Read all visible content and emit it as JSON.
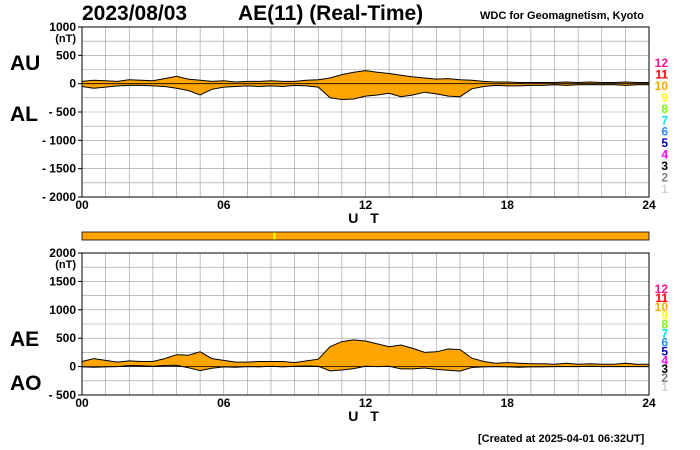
{
  "header": {
    "date": "2023/08/03",
    "title": "AE(11) (Real-Time)",
    "source": "WDC for Geomagnetism, Kyoto",
    "created": "[Created at 2025-04-01 06:32UT]"
  },
  "legend": {
    "items": [
      {
        "label": "12",
        "color": "#ff1493"
      },
      {
        "label": "11",
        "color": "#ff0000"
      },
      {
        "label": "10",
        "color": "#ffa500"
      },
      {
        "label": "9",
        "color": "#ffff00"
      },
      {
        "label": "8",
        "color": "#7cfc00"
      },
      {
        "label": "7",
        "color": "#00e5ee"
      },
      {
        "label": "6",
        "color": "#1e90ff"
      },
      {
        "label": "5",
        "color": "#0000cd"
      },
      {
        "label": "4",
        "color": "#ff00ff"
      },
      {
        "label": "3",
        "color": "#000000"
      },
      {
        "label": "2",
        "color": "#808080"
      },
      {
        "label": "1",
        "color": "#d3d3d3"
      }
    ]
  },
  "station_bar": {
    "color": "#ffa500",
    "marker_color": "#ffff00",
    "marker_at_hour": 8.1
  },
  "chart_data": [
    {
      "type": "area",
      "name": "AU/AL",
      "series_labels": [
        "AU",
        "AL"
      ],
      "fill_color": "#ffa500",
      "unit": "(nT)",
      "xlabel": "U T",
      "xlim": [
        0,
        24
      ],
      "ylim": [
        -2000,
        1000
      ],
      "xticks": [
        0,
        6,
        12,
        18,
        24
      ],
      "xtick_labels": [
        "00",
        "06",
        "12",
        "18",
        "24"
      ],
      "yticks": [
        1000,
        500,
        0,
        -500,
        -1000,
        -1500,
        -2000
      ],
      "ytick_labels": [
        "1000",
        "500",
        "0",
        "- 500",
        "- 1000",
        "- 1500",
        "- 2000"
      ],
      "grid": true,
      "series": [
        {
          "name": "AU",
          "x": [
            0,
            0.5,
            1,
            1.5,
            2,
            2.5,
            3,
            3.5,
            4,
            4.5,
            5,
            5.5,
            6,
            6.5,
            7,
            7.5,
            8,
            8.5,
            9,
            9.5,
            10,
            10.5,
            11,
            11.5,
            12,
            12.5,
            13,
            13.5,
            14,
            14.5,
            15,
            15.5,
            16,
            16.5,
            17,
            17.5,
            18,
            18.5,
            19,
            19.5,
            20,
            20.5,
            21,
            21.5,
            22,
            22.5,
            23,
            23.5,
            24
          ],
          "values": [
            40,
            60,
            50,
            40,
            70,
            60,
            50,
            90,
            130,
            80,
            60,
            40,
            50,
            30,
            40,
            40,
            50,
            40,
            40,
            60,
            70,
            100,
            160,
            200,
            230,
            200,
            180,
            150,
            120,
            100,
            80,
            90,
            70,
            60,
            40,
            30,
            30,
            20,
            20,
            20,
            20,
            30,
            20,
            30,
            20,
            20,
            30,
            20,
            20
          ]
        },
        {
          "name": "AL",
          "x": [
            0,
            0.5,
            1,
            1.5,
            2,
            2.5,
            3,
            3.5,
            4,
            4.5,
            5,
            5.5,
            6,
            6.5,
            7,
            7.5,
            8,
            8.5,
            9,
            9.5,
            10,
            10.5,
            11,
            11.5,
            12,
            12.5,
            13,
            13.5,
            14,
            14.5,
            15,
            15.5,
            16,
            16.5,
            17,
            17.5,
            18,
            18.5,
            19,
            19.5,
            20,
            20.5,
            21,
            21.5,
            22,
            22.5,
            23,
            23.5,
            24
          ],
          "values": [
            -50,
            -80,
            -60,
            -40,
            -30,
            -30,
            -40,
            -50,
            -80,
            -120,
            -200,
            -100,
            -60,
            -50,
            -40,
            -50,
            -40,
            -50,
            -30,
            -40,
            -60,
            -250,
            -280,
            -270,
            -220,
            -200,
            -170,
            -230,
            -200,
            -150,
            -180,
            -220,
            -230,
            -90,
            -50,
            -30,
            -40,
            -40,
            -30,
            -30,
            -20,
            -30,
            -20,
            -20,
            -20,
            -20,
            -30,
            -20,
            -20
          ]
        }
      ]
    },
    {
      "type": "area",
      "name": "AE/AO",
      "series_labels": [
        "AE",
        "AO"
      ],
      "fill_color": "#ffa500",
      "unit": "(nT)",
      "xlabel": "U T",
      "xlim": [
        0,
        24
      ],
      "ylim": [
        -500,
        2000
      ],
      "xticks": [
        0,
        6,
        12,
        18,
        24
      ],
      "xtick_labels": [
        "00",
        "06",
        "12",
        "18",
        "24"
      ],
      "yticks": [
        2000,
        1500,
        1000,
        500,
        0,
        -500
      ],
      "ytick_labels": [
        "2000",
        "1500",
        "1000",
        "500",
        "0",
        "- 500"
      ],
      "grid": true,
      "series": [
        {
          "name": "AE",
          "x": [
            0,
            0.5,
            1,
            1.5,
            2,
            2.5,
            3,
            3.5,
            4,
            4.5,
            5,
            5.5,
            6,
            6.5,
            7,
            7.5,
            8,
            8.5,
            9,
            9.5,
            10,
            10.5,
            11,
            11.5,
            12,
            12.5,
            13,
            13.5,
            14,
            14.5,
            15,
            15.5,
            16,
            16.5,
            17,
            17.5,
            18,
            18.5,
            19,
            19.5,
            20,
            20.5,
            21,
            21.5,
            22,
            22.5,
            23,
            23.5,
            24
          ],
          "values": [
            90,
            140,
            110,
            80,
            100,
            90,
            90,
            140,
            210,
            200,
            260,
            140,
            110,
            80,
            80,
            90,
            90,
            90,
            70,
            100,
            130,
            350,
            440,
            470,
            450,
            400,
            350,
            380,
            320,
            250,
            260,
            310,
            300,
            150,
            90,
            60,
            70,
            60,
            50,
            50,
            40,
            60,
            40,
            50,
            40,
            40,
            60,
            40,
            40
          ]
        },
        {
          "name": "AO",
          "x": [
            0,
            0.5,
            1,
            1.5,
            2,
            2.5,
            3,
            3.5,
            4,
            4.5,
            5,
            5.5,
            6,
            6.5,
            7,
            7.5,
            8,
            8.5,
            9,
            9.5,
            10,
            10.5,
            11,
            11.5,
            12,
            12.5,
            13,
            13.5,
            14,
            14.5,
            15,
            15.5,
            16,
            16.5,
            17,
            17.5,
            18,
            18.5,
            19,
            19.5,
            20,
            20.5,
            21,
            21.5,
            22,
            22.5,
            23,
            23.5,
            24
          ],
          "values": [
            -5,
            -10,
            -5,
            0,
            20,
            15,
            5,
            20,
            25,
            -20,
            -70,
            -30,
            -5,
            -10,
            0,
            -5,
            5,
            -5,
            5,
            10,
            5,
            -75,
            -60,
            -35,
            5,
            0,
            5,
            -40,
            -40,
            -25,
            -50,
            -65,
            -80,
            -15,
            -5,
            0,
            -5,
            -10,
            -5,
            -5,
            0,
            0,
            0,
            5,
            0,
            0,
            0,
            0,
            0
          ]
        }
      ]
    }
  ]
}
